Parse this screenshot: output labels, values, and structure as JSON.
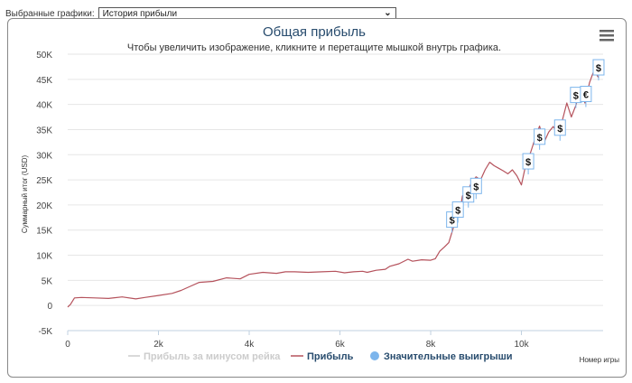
{
  "selector": {
    "label": "Выбранные графики:",
    "value": "История прибыли"
  },
  "menu": {
    "icon": "hamburger-menu-icon"
  },
  "chart_data": {
    "type": "line",
    "title": "Общая прибыль",
    "subtitle": "Чтобы увеличить изображение, кликните и перетащите мышкой внутрь графика.",
    "xlabel": "Номер игры",
    "ylabel": "Суммарный итог (USD)",
    "xlim": [
      0,
      11800
    ],
    "ylim": [
      -5000,
      50000
    ],
    "x_ticks": [
      0,
      2000,
      4000,
      6000,
      8000,
      10000
    ],
    "x_tick_labels": [
      "0",
      "2k",
      "4k",
      "6k",
      "8k",
      "10k"
    ],
    "y_ticks": [
      -5000,
      0,
      5000,
      10000,
      15000,
      20000,
      25000,
      30000,
      35000,
      40000,
      45000,
      50000
    ],
    "y_tick_labels": [
      "-5K",
      "0",
      "5K",
      "10K",
      "15K",
      "20K",
      "25K",
      "30K",
      "35K",
      "40K",
      "45K",
      "50K"
    ],
    "legend_position": "bottom",
    "series": [
      {
        "name": "Прибыль за минусом рейка",
        "color": "#cccccc",
        "visible": false,
        "x": [],
        "y": []
      },
      {
        "name": "Прибыль",
        "color": "#b5525c",
        "x": [
          0,
          60,
          150,
          300,
          600,
          900,
          1200,
          1500,
          1700,
          2000,
          2300,
          2500,
          2700,
          2900,
          3200,
          3500,
          3800,
          4000,
          4300,
          4600,
          4800,
          5000,
          5300,
          5600,
          5900,
          6100,
          6300,
          6500,
          6600,
          6800,
          7000,
          7100,
          7300,
          7500,
          7600,
          7800,
          8000,
          8100,
          8200,
          8300,
          8400,
          8500,
          8550,
          8650,
          8700,
          8800,
          8900,
          9000,
          9100,
          9200,
          9300,
          9400,
          9500,
          9600,
          9700,
          9800,
          9900,
          10000,
          10100,
          10200,
          10300,
          10400,
          10500,
          10600,
          10700,
          10800,
          10900,
          11000,
          11100,
          11200,
          11300,
          11400,
          11500,
          11600,
          11700
        ],
        "y": [
          -300,
          200,
          1500,
          1600,
          1500,
          1400,
          1700,
          1300,
          1600,
          2000,
          2400,
          3000,
          3800,
          4600,
          4800,
          5500,
          5300,
          6200,
          6600,
          6400,
          6700,
          6700,
          6600,
          6700,
          6800,
          6500,
          6700,
          6800,
          6600,
          7000,
          7200,
          7800,
          8300,
          9200,
          8800,
          9100,
          9000,
          9300,
          10800,
          11600,
          12500,
          15500,
          16700,
          19000,
          21800,
          22500,
          24500,
          25600,
          25000,
          27000,
          28500,
          27800,
          27300,
          26800,
          26200,
          27000,
          25800,
          24000,
          28200,
          30400,
          33200,
          35700,
          32500,
          34500,
          35600,
          34300,
          36800,
          40300,
          37500,
          39800,
          42900,
          40300,
          44300,
          46800,
          45300
        ]
      },
      {
        "name": "Значительные выигрыши",
        "color": "#7cb5ec",
        "points": [
          {
            "x": 8470,
            "y": 17000,
            "label": "$"
          },
          {
            "x": 8600,
            "y": 19000,
            "label": "$"
          },
          {
            "x": 8830,
            "y": 22000,
            "label": "$"
          },
          {
            "x": 9000,
            "y": 23700,
            "label": "$"
          },
          {
            "x": 10150,
            "y": 28600,
            "label": "$"
          },
          {
            "x": 10400,
            "y": 33500,
            "label": "$"
          },
          {
            "x": 10850,
            "y": 35300,
            "label": "$"
          },
          {
            "x": 11200,
            "y": 41800,
            "label": "$"
          },
          {
            "x": 11420,
            "y": 42000,
            "label": "€"
          },
          {
            "x": 11700,
            "y": 47300,
            "label": "$"
          }
        ]
      }
    ]
  }
}
